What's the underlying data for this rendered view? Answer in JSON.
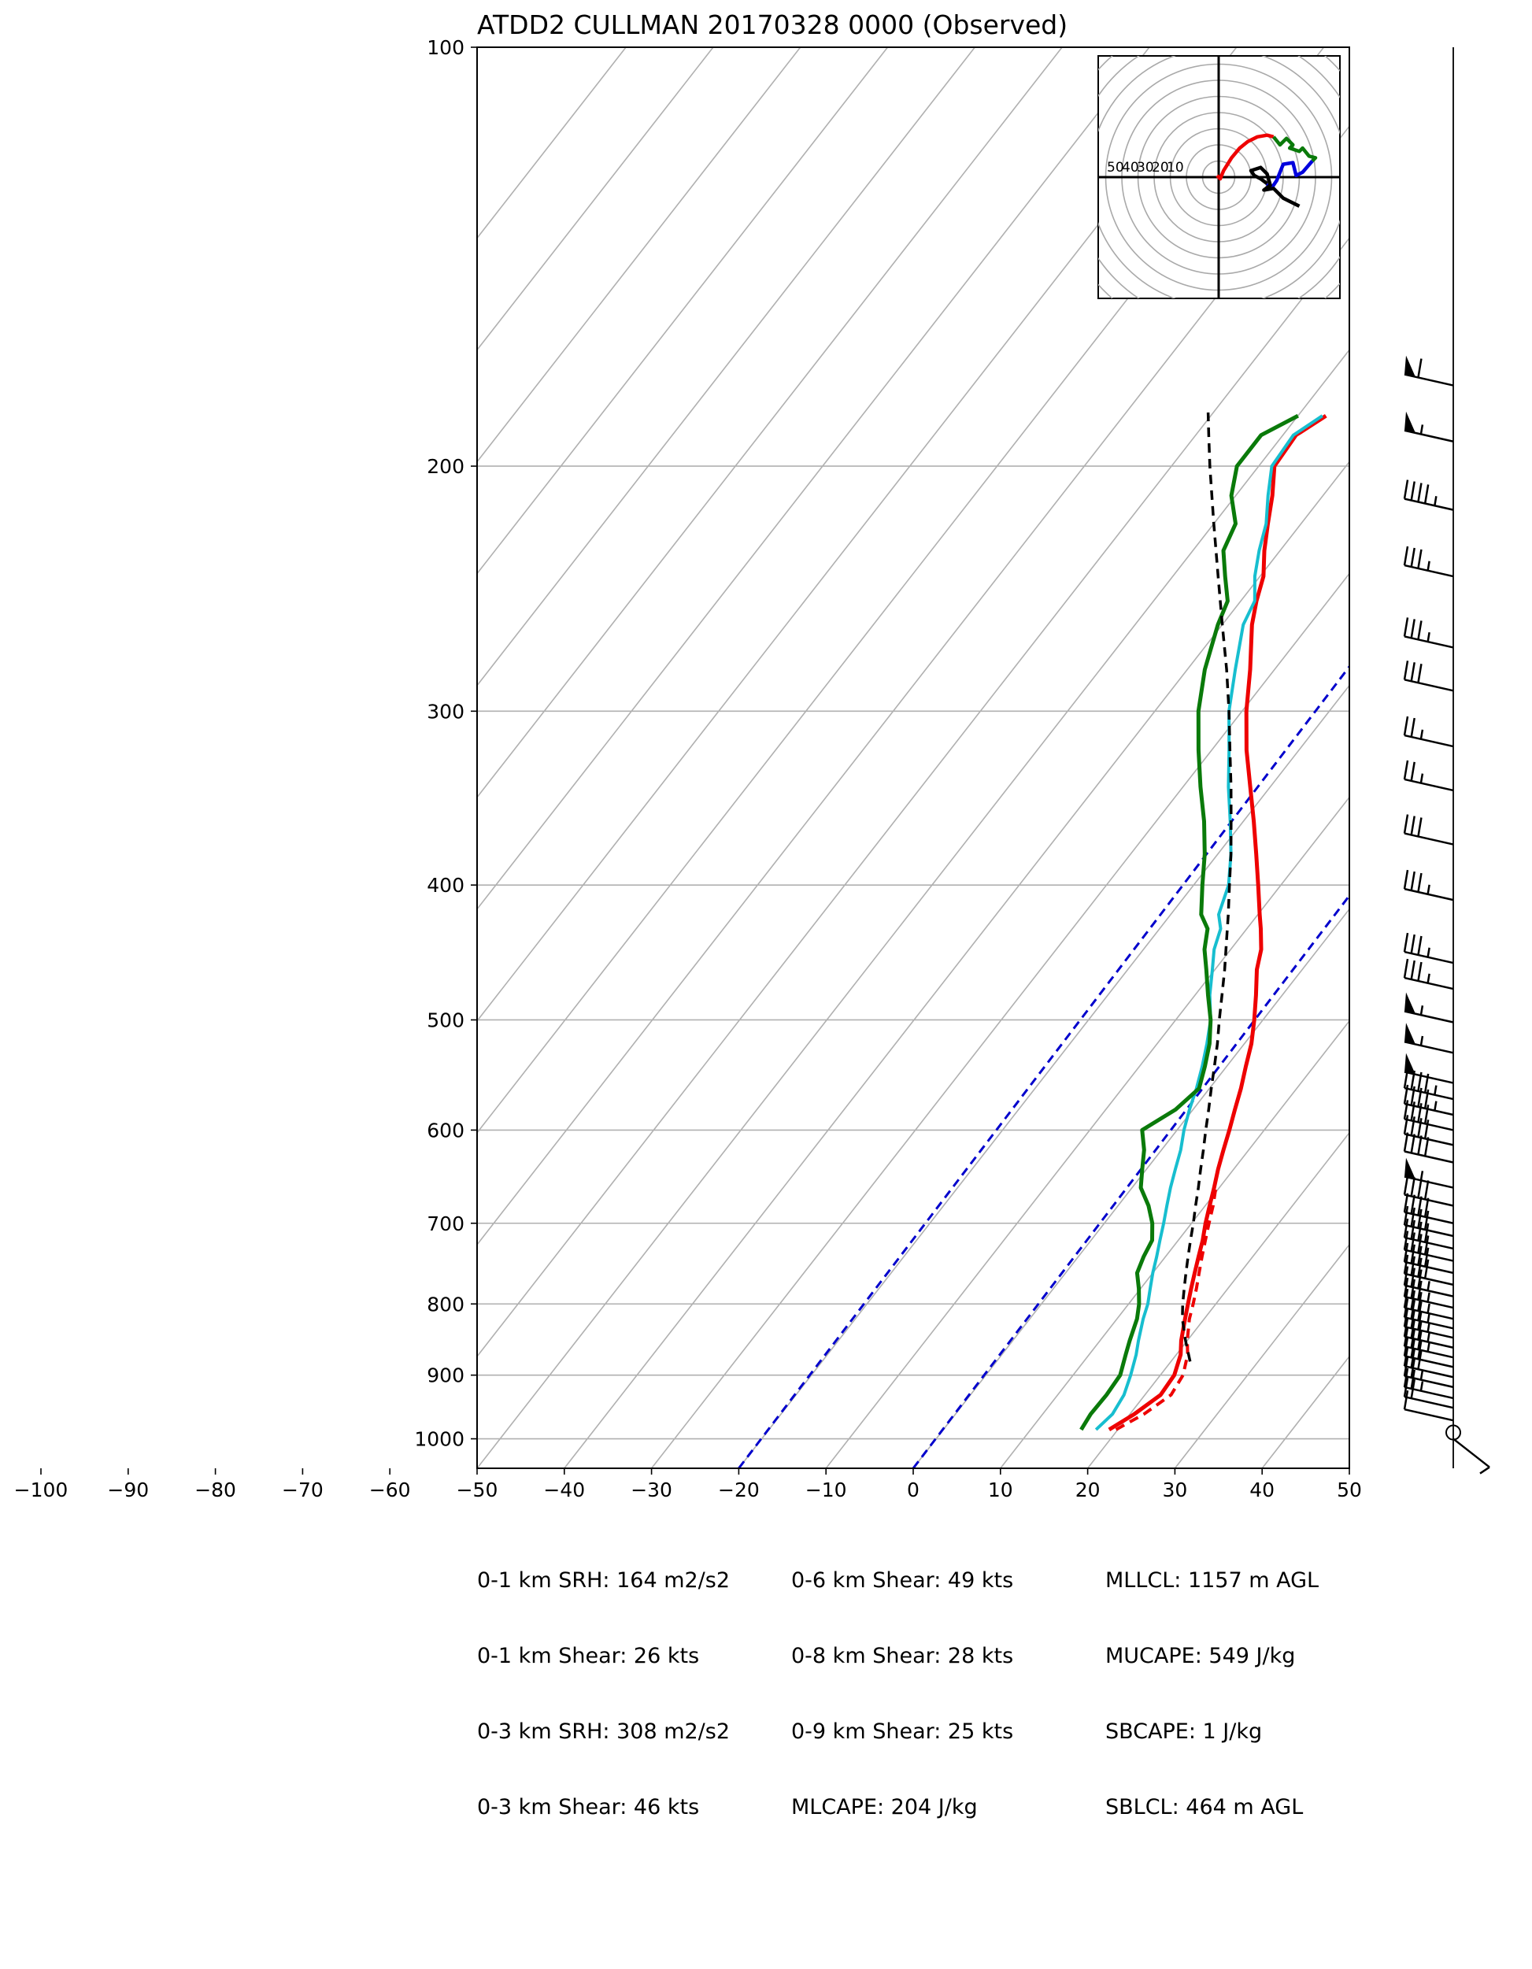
{
  "title": "ATDD2 CULLMAN 20170328 0000   (Observed)",
  "colors": {
    "temperature": "#ee0000",
    "virtual_temperature": "#ee0000",
    "wetbulb": "#17becf",
    "dewpoint": "#0a7a0a",
    "parcel": "#000000",
    "moist_adiabat": "#0000cc",
    "grid": "#b0b0b0"
  },
  "chart_data": {
    "type": "line",
    "subtype": "skew-t log-p",
    "xlabel": "",
    "ylabel": "",
    "xlim": [
      -100,
      50
    ],
    "ylim": [
      1050,
      100
    ],
    "log_y": true,
    "grid": true,
    "x_ticks": [
      "−100",
      "−90",
      "−80",
      "−70",
      "−60",
      "−50",
      "−40",
      "−30",
      "−20",
      "−10",
      "0",
      "10",
      "20",
      "30",
      "40",
      "50"
    ],
    "y_ticks": [
      "100",
      "200",
      "300",
      "400",
      "500",
      "600",
      "700",
      "800",
      "900",
      "1000"
    ],
    "series": [
      {
        "key": "temperature",
        "pressure": [
          985,
          960,
          930,
          900,
          870,
          850,
          820,
          800,
          780,
          760,
          740,
          720,
          700,
          680,
          660,
          640,
          620,
          600,
          580,
          560,
          540,
          520,
          500,
          480,
          460,
          445,
          430,
          420,
          400,
          380,
          360,
          340,
          320,
          300,
          280,
          260,
          250,
          240,
          230,
          220,
          210,
          200,
          190,
          184
        ],
        "values": [
          19,
          20.5,
          21.8,
          21.6,
          20.5,
          19.3,
          17.8,
          16.8,
          15.8,
          14.8,
          13.8,
          12.8,
          11.6,
          10.5,
          9.4,
          8.2,
          7.1,
          6.0,
          4.8,
          3.6,
          2.2,
          0.8,
          -1.0,
          -3.0,
          -5.2,
          -6.5,
          -8.4,
          -9.8,
          -12.6,
          -15.6,
          -18.8,
          -22.3,
          -26.0,
          -29.5,
          -32.8,
          -36.6,
          -38.2,
          -39.6,
          -41.8,
          -43.8,
          -45.8,
          -48.2,
          -48.5,
          -46.8
        ]
      },
      {
        "key": "virtual_temperature",
        "pressure": [
          985,
          960,
          930,
          900,
          870,
          850,
          820,
          800,
          780,
          760,
          740,
          720,
          700,
          680,
          660
        ],
        "values": [
          19.8,
          21.6,
          23.0,
          22.6,
          21.3,
          20.0,
          18.3,
          17.4,
          16.4,
          15.3,
          14.2,
          13.1,
          12.0,
          10.9,
          9.6
        ]
      },
      {
        "key": "wetbulb",
        "pressure": [
          985,
          960,
          930,
          900,
          870,
          850,
          820,
          800,
          780,
          760,
          740,
          720,
          700,
          680,
          660,
          640,
          620,
          600,
          580,
          560,
          540,
          520,
          500,
          480,
          460,
          445,
          430,
          420,
          400,
          380,
          360,
          340,
          320,
          300,
          280,
          260,
          250,
          240,
          230,
          220,
          210,
          200,
          190,
          184
        ],
        "values": [
          17.5,
          18.0,
          17.6,
          16.6,
          15.4,
          14.4,
          13.0,
          12.2,
          11.1,
          10.0,
          9.0,
          7.9,
          6.8,
          5.6,
          4.4,
          3.3,
          2.2,
          0.8,
          -0.4,
          -1.5,
          -2.8,
          -4.3,
          -6.0,
          -8.3,
          -10.3,
          -11.9,
          -13.0,
          -14.5,
          -16.0,
          -18.5,
          -21.5,
          -24.8,
          -28.0,
          -31.5,
          -34.5,
          -37.6,
          -38.4,
          -40.6,
          -42.4,
          -44.0,
          -46.3,
          -48.5,
          -48.8,
          -47.2
        ]
      },
      {
        "key": "dewpoint",
        "pressure": [
          985,
          960,
          930,
          900,
          870,
          850,
          820,
          800,
          780,
          760,
          740,
          720,
          700,
          680,
          660,
          640,
          620,
          600,
          580,
          560,
          540,
          520,
          500,
          480,
          460,
          445,
          430,
          420,
          400,
          380,
          360,
          340,
          320,
          300,
          280,
          260,
          250,
          240,
          230,
          220,
          210,
          200,
          190,
          184
        ],
        "values": [
          15.8,
          15.5,
          15.6,
          15.4,
          14.2,
          13.4,
          12.3,
          11.2,
          9.8,
          8.2,
          7.5,
          7.0,
          5.5,
          3.5,
          1.0,
          -0.5,
          -2.0,
          -4.0,
          -2.0,
          -1.2,
          -2.5,
          -4.0,
          -6.0,
          -8.5,
          -11.0,
          -13.0,
          -14.5,
          -16.5,
          -19.0,
          -21.5,
          -24.5,
          -28.0,
          -31.5,
          -35.0,
          -38.0,
          -40.5,
          -41.5,
          -44.0,
          -46.5,
          -47.5,
          -50.5,
          -52.5,
          -52.5,
          -50.0
        ]
      },
      {
        "key": "parcel",
        "pressure": [
          880,
          850,
          820,
          800,
          780,
          760,
          740,
          720,
          700,
          680,
          660,
          640,
          620,
          600,
          580,
          560,
          540,
          520,
          500,
          480,
          460,
          440,
          420,
          400,
          380,
          360,
          340,
          320,
          300,
          280,
          260,
          240,
          220,
          200,
          190,
          183
        ],
        "values": [
          22.2,
          19.8,
          17.5,
          16.2,
          15.0,
          13.8,
          12.6,
          11.4,
          10.2,
          8.9,
          7.6,
          6.2,
          4.8,
          3.3,
          1.8,
          0.2,
          -1.4,
          -3.1,
          -5.0,
          -6.9,
          -8.9,
          -11.1,
          -13.4,
          -15.9,
          -18.5,
          -21.4,
          -24.5,
          -27.9,
          -31.5,
          -35.5,
          -40.0,
          -44.8,
          -50.0,
          -55.6,
          -58.5,
          -60.6
        ]
      }
    ],
    "moist_adiabats": [
      -20,
      0
    ],
    "dry_adiabats_hint": "grey skewed isotherms every 10 C",
    "hodograph": {
      "range_rings": [
        10,
        20,
        30,
        40,
        50,
        60,
        70,
        80,
        90,
        100
      ],
      "ring_labels": [
        "50",
        "40",
        "30",
        "20",
        "10"
      ],
      "segments": [
        {
          "color": "red",
          "u": [
            -1,
            1,
            3,
            8,
            13,
            18,
            24,
            30,
            34
          ],
          "v": [
            1,
            -1,
            4,
            12,
            18,
            22,
            25,
            26,
            25
          ]
        },
        {
          "color": "green",
          "u": [
            34,
            38,
            42,
            46,
            44,
            50,
            52,
            56,
            60,
            58
          ],
          "v": [
            25,
            20,
            24,
            20,
            18,
            16,
            18,
            13,
            12,
            10
          ]
        },
        {
          "color": "blue",
          "u": [
            58,
            52,
            48,
            46,
            40,
            38,
            36,
            34,
            32,
            30
          ],
          "v": [
            10,
            3,
            1,
            9,
            8,
            3,
            -2,
            -5,
            -7,
            -4
          ]
        },
        {
          "color": "black",
          "u": [
            30,
            26,
            22,
            20,
            26,
            30,
            32,
            28,
            34,
            40,
            46,
            50
          ],
          "v": [
            -4,
            -1,
            1,
            4,
            6,
            2,
            -5,
            -8,
            -7,
            -13,
            -16,
            -18
          ]
        }
      ]
    },
    "wind_barbs": {
      "pressure": [
        175,
        192,
        215,
        240,
        270,
        290,
        318,
        342,
        374,
        410,
        455,
        475,
        502,
        528,
        555,
        570,
        585,
        600,
        615,
        633,
        660,
        680,
        700,
        715,
        730,
        745,
        760,
        775,
        790,
        805,
        820,
        833,
        846,
        860,
        874,
        888,
        903,
        918,
        935,
        950,
        970,
        1000
      ],
      "speed_kts": [
        60,
        55,
        45,
        35,
        35,
        30,
        25,
        25,
        30,
        35,
        35,
        35,
        55,
        55,
        50,
        45,
        45,
        40,
        40,
        40,
        55,
        40,
        40,
        40,
        40,
        40,
        40,
        40,
        35,
        35,
        35,
        35,
        35,
        35,
        35,
        30,
        30,
        25,
        25,
        20,
        10,
        5
      ]
    },
    "stats": {
      "col1": [
        "0-1 km SRH: 164 m2/s2",
        "0-1 km Shear: 26 kts",
        "0-3 km SRH: 308 m2/s2",
        "0-3 km Shear: 46 kts"
      ],
      "col2": [
        "0-6 km Shear: 49 kts",
        "0-8 km Shear: 28 kts",
        "0-9 km Shear: 25 kts",
        "MLCAPE: 204 J/kg"
      ],
      "col3": [
        "MLLCL: 1157 m AGL",
        "MUCAPE: 549 J/kg",
        "SBCAPE: 1 J/kg",
        "SBLCL: 464 m AGL"
      ]
    }
  }
}
